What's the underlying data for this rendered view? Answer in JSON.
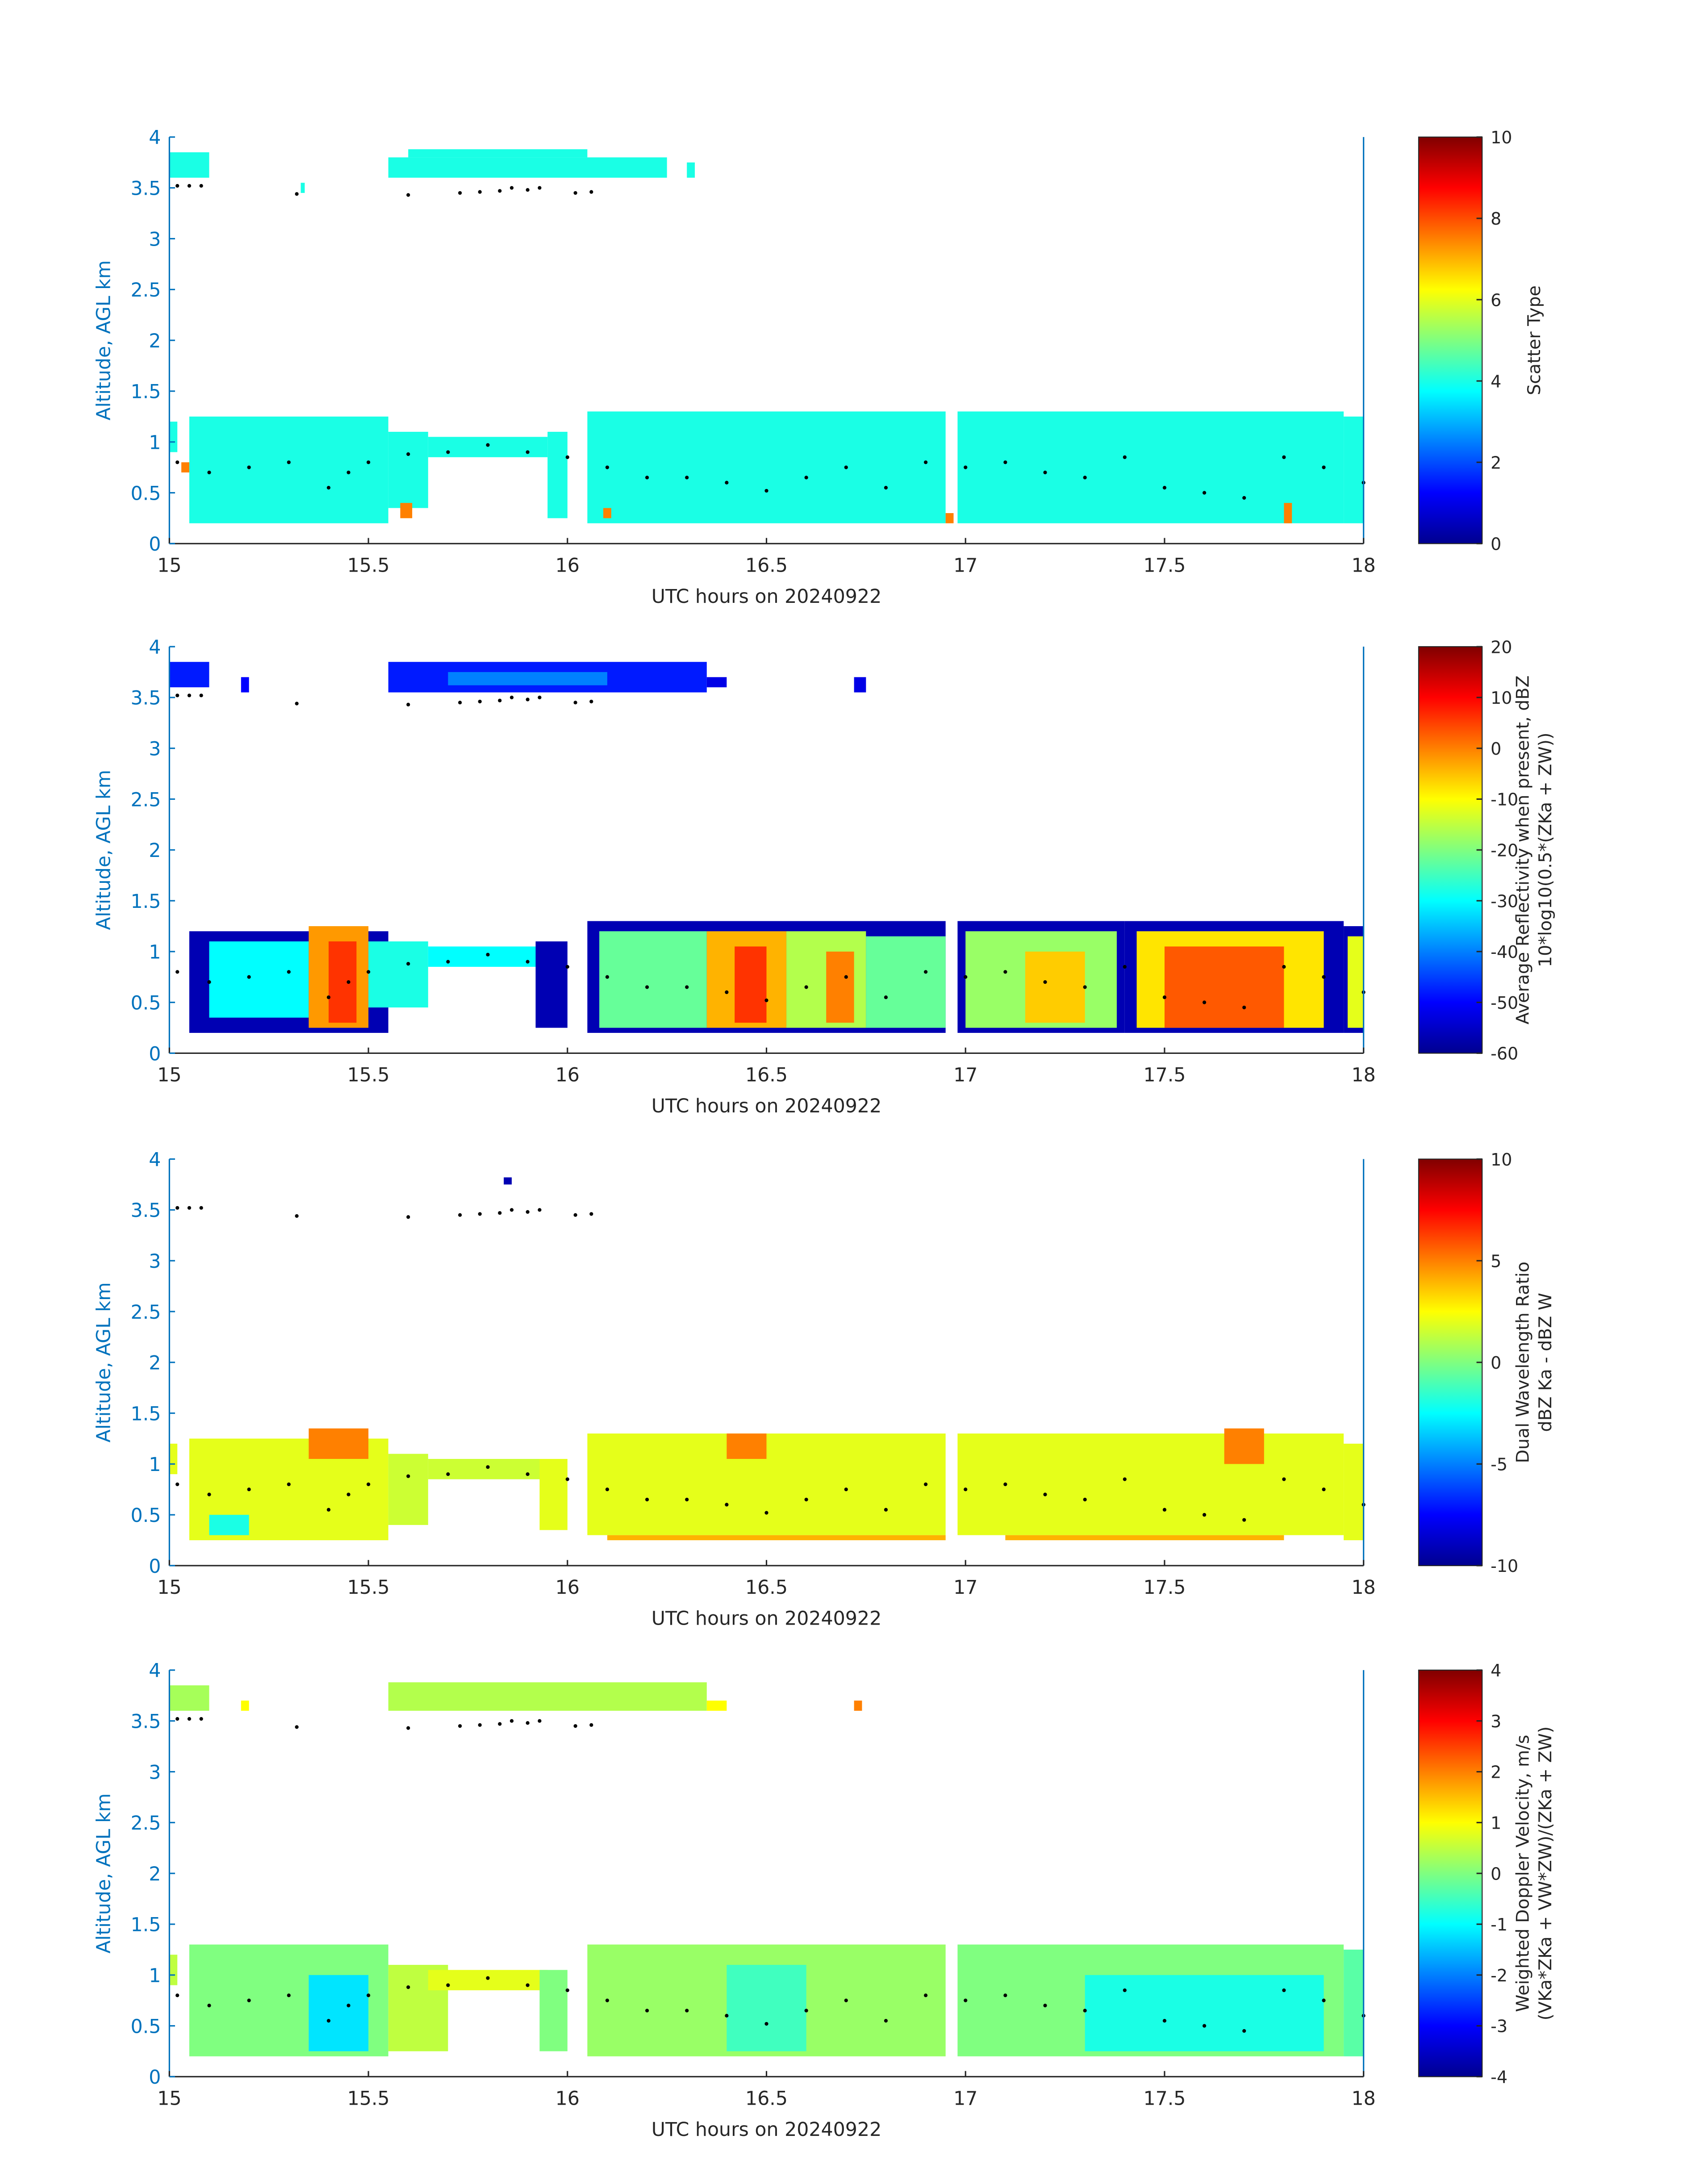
{
  "chart_data": [
    {
      "type": "heatmap",
      "xlabel": "UTC hours on 20240922",
      "ylabel": "Altitude, AGL km",
      "xlim": [
        15,
        18
      ],
      "xticks": [
        15,
        15.5,
        16,
        16.5,
        17,
        17.5,
        18
      ],
      "ylim": [
        0,
        4
      ],
      "yticks": [
        0,
        0.5,
        1,
        1.5,
        2,
        2.5,
        3,
        3.5,
        4
      ],
      "clabel": [
        "Scatter Type"
      ],
      "clim": [
        0,
        10
      ],
      "cticks": [
        0,
        2,
        4,
        6,
        8,
        10
      ],
      "cells": [
        [
          15.0,
          15.1,
          3.6,
          3.85,
          4
        ],
        [
          15.33,
          15.34,
          3.45,
          3.55,
          4
        ],
        [
          15.55,
          16.25,
          3.6,
          3.8,
          4
        ],
        [
          15.6,
          16.05,
          3.8,
          3.88,
          4
        ],
        [
          16.3,
          16.32,
          3.6,
          3.75,
          4
        ],
        [
          15.0,
          15.02,
          0.9,
          1.2,
          4
        ],
        [
          15.05,
          15.55,
          0.2,
          1.25,
          4
        ],
        [
          15.55,
          15.65,
          0.35,
          1.1,
          4
        ],
        [
          15.65,
          15.95,
          0.85,
          1.05,
          4
        ],
        [
          15.95,
          16.0,
          0.25,
          1.1,
          4
        ],
        [
          16.05,
          16.95,
          0.2,
          1.3,
          4
        ],
        [
          16.98,
          17.95,
          0.2,
          1.3,
          4
        ],
        [
          17.95,
          18.0,
          0.2,
          1.25,
          4
        ],
        [
          15.03,
          15.05,
          0.7,
          0.8,
          7.5
        ],
        [
          15.58,
          15.61,
          0.25,
          0.4,
          7.5
        ],
        [
          16.09,
          16.11,
          0.25,
          0.35,
          7.5
        ],
        [
          16.95,
          16.97,
          0.2,
          0.3,
          7.5
        ],
        [
          17.8,
          17.82,
          0.2,
          0.4,
          7.5
        ]
      ],
      "points": {
        "x": [
          15.02,
          15.05,
          15.08,
          15.32,
          15.6,
          15.73,
          15.78,
          15.83,
          15.86,
          15.9,
          15.93,
          16.02,
          16.06,
          15.02,
          15.1,
          15.2,
          15.3,
          15.4,
          15.45,
          15.5,
          15.6,
          15.7,
          15.8,
          15.9,
          16.0,
          16.1,
          16.2,
          16.3,
          16.4,
          16.5,
          16.6,
          16.7,
          16.8,
          16.9,
          17.0,
          17.1,
          17.2,
          17.3,
          17.4,
          17.5,
          17.6,
          17.7,
          17.8,
          17.9,
          18.0
        ],
        "y": [
          3.52,
          3.52,
          3.52,
          3.44,
          3.43,
          3.45,
          3.46,
          3.47,
          3.5,
          3.48,
          3.5,
          3.45,
          3.46,
          0.8,
          0.7,
          0.75,
          0.8,
          0.55,
          0.7,
          0.8,
          0.88,
          0.9,
          0.97,
          0.9,
          0.85,
          0.75,
          0.65,
          0.65,
          0.6,
          0.52,
          0.65,
          0.75,
          0.55,
          0.8,
          0.75,
          0.8,
          0.7,
          0.65,
          0.85,
          0.55,
          0.5,
          0.45,
          0.85,
          0.75,
          0.6
        ]
      }
    },
    {
      "type": "heatmap",
      "xlabel": "UTC hours on 20240922",
      "ylabel": "Altitude, AGL km",
      "xlim": [
        15,
        18
      ],
      "xticks": [
        15,
        15.5,
        16,
        16.5,
        17,
        17.5,
        18
      ],
      "ylim": [
        0,
        4
      ],
      "yticks": [
        0,
        0.5,
        1,
        1.5,
        2,
        2.5,
        3,
        3.5,
        4
      ],
      "clabel": [
        "Average Reflectivity when present, dBZ",
        "10*log10(0.5*(ZKa + ZW))"
      ],
      "clim": [
        -60,
        20
      ],
      "cticks": [
        -60,
        -50,
        -40,
        -30,
        -20,
        -10,
        0,
        10,
        20
      ],
      "cells": [
        [
          15.0,
          15.1,
          3.6,
          3.85,
          -48
        ],
        [
          15.18,
          15.2,
          3.55,
          3.7,
          -50
        ],
        [
          15.55,
          16.35,
          3.55,
          3.85,
          -48
        ],
        [
          15.7,
          16.1,
          3.62,
          3.75,
          -40
        ],
        [
          16.35,
          16.4,
          3.6,
          3.7,
          -52
        ],
        [
          16.72,
          16.75,
          3.55,
          3.7,
          -52
        ],
        [
          15.05,
          15.55,
          0.2,
          1.2,
          -56
        ],
        [
          15.1,
          15.35,
          0.35,
          1.1,
          -30
        ],
        [
          15.35,
          15.5,
          0.25,
          1.25,
          -2
        ],
        [
          15.4,
          15.47,
          0.3,
          1.1,
          6
        ],
        [
          15.5,
          15.65,
          0.45,
          1.1,
          -28
        ],
        [
          15.65,
          15.95,
          0.85,
          1.05,
          -30
        ],
        [
          15.92,
          16.0,
          0.25,
          1.1,
          -56
        ],
        [
          16.05,
          16.95,
          0.2,
          1.3,
          -56
        ],
        [
          16.08,
          16.35,
          0.25,
          1.2,
          -22
        ],
        [
          16.35,
          16.55,
          0.25,
          1.2,
          -4
        ],
        [
          16.42,
          16.5,
          0.3,
          1.05,
          6
        ],
        [
          16.55,
          16.75,
          0.25,
          1.2,
          -16
        ],
        [
          16.65,
          16.72,
          0.3,
          1.0,
          0
        ],
        [
          16.75,
          16.95,
          0.25,
          1.15,
          -22
        ],
        [
          16.98,
          17.4,
          0.2,
          1.3,
          -56
        ],
        [
          17.0,
          17.38,
          0.25,
          1.2,
          -18
        ],
        [
          17.15,
          17.3,
          0.3,
          1.0,
          -6
        ],
        [
          17.4,
          17.95,
          0.2,
          1.3,
          -56
        ],
        [
          17.43,
          17.9,
          0.25,
          1.2,
          -8
        ],
        [
          17.5,
          17.8,
          0.25,
          1.05,
          3
        ],
        [
          17.95,
          18.0,
          0.2,
          1.25,
          -56
        ],
        [
          17.96,
          18.0,
          0.25,
          1.15,
          -12
        ]
      ],
      "points": {
        "x": [
          15.02,
          15.05,
          15.08,
          15.32,
          15.6,
          15.73,
          15.78,
          15.83,
          15.86,
          15.9,
          15.93,
          16.02,
          16.06,
          15.02,
          15.1,
          15.2,
          15.3,
          15.4,
          15.45,
          15.5,
          15.6,
          15.7,
          15.8,
          15.9,
          16.0,
          16.1,
          16.2,
          16.3,
          16.4,
          16.5,
          16.6,
          16.7,
          16.8,
          16.9,
          17.0,
          17.1,
          17.2,
          17.3,
          17.4,
          17.5,
          17.6,
          17.7,
          17.8,
          17.9,
          18.0
        ],
        "y": [
          3.52,
          3.52,
          3.52,
          3.44,
          3.43,
          3.45,
          3.46,
          3.47,
          3.5,
          3.48,
          3.5,
          3.45,
          3.46,
          0.8,
          0.7,
          0.75,
          0.8,
          0.55,
          0.7,
          0.8,
          0.88,
          0.9,
          0.97,
          0.9,
          0.85,
          0.75,
          0.65,
          0.65,
          0.6,
          0.52,
          0.65,
          0.75,
          0.55,
          0.8,
          0.75,
          0.8,
          0.7,
          0.65,
          0.85,
          0.55,
          0.5,
          0.45,
          0.85,
          0.75,
          0.6
        ]
      }
    },
    {
      "type": "heatmap",
      "xlabel": "UTC hours on 20240922",
      "ylabel": "Altitude, AGL km",
      "xlim": [
        15,
        18
      ],
      "xticks": [
        15,
        15.5,
        16,
        16.5,
        17,
        17.5,
        18
      ],
      "ylim": [
        0,
        4
      ],
      "yticks": [
        0,
        0.5,
        1,
        1.5,
        2,
        2.5,
        3,
        3.5,
        4
      ],
      "clabel": [
        "Dual Wavelength Ratio",
        "dBZ Ka - dBZ W"
      ],
      "clim": [
        -10,
        10
      ],
      "cticks": [
        -10,
        -5,
        0,
        5,
        10
      ],
      "cells": [
        [
          15.84,
          15.86,
          3.75,
          3.82,
          -9
        ],
        [
          15.0,
          15.02,
          0.9,
          1.2,
          2
        ],
        [
          15.05,
          15.55,
          0.25,
          1.25,
          2
        ],
        [
          15.35,
          15.5,
          1.05,
          1.35,
          5
        ],
        [
          15.1,
          15.2,
          0.3,
          0.5,
          -2
        ],
        [
          15.55,
          15.65,
          0.4,
          1.1,
          1.5
        ],
        [
          15.65,
          15.95,
          0.85,
          1.05,
          1.5
        ],
        [
          15.93,
          16.0,
          0.35,
          1.05,
          2
        ],
        [
          16.05,
          16.95,
          0.3,
          1.3,
          2
        ],
        [
          16.4,
          16.5,
          1.05,
          1.3,
          5
        ],
        [
          16.1,
          16.95,
          0.25,
          0.3,
          4
        ],
        [
          16.98,
          17.95,
          0.3,
          1.3,
          2
        ],
        [
          17.65,
          17.75,
          1.0,
          1.35,
          5
        ],
        [
          17.1,
          17.8,
          0.25,
          0.3,
          4
        ],
        [
          17.95,
          18.0,
          0.25,
          1.2,
          2
        ]
      ],
      "points": {
        "x": [
          15.02,
          15.05,
          15.08,
          15.32,
          15.6,
          15.73,
          15.78,
          15.83,
          15.86,
          15.9,
          15.93,
          16.02,
          16.06,
          15.02,
          15.1,
          15.2,
          15.3,
          15.4,
          15.45,
          15.5,
          15.6,
          15.7,
          15.8,
          15.9,
          16.0,
          16.1,
          16.2,
          16.3,
          16.4,
          16.5,
          16.6,
          16.7,
          16.8,
          16.9,
          17.0,
          17.1,
          17.2,
          17.3,
          17.4,
          17.5,
          17.6,
          17.7,
          17.8,
          17.9,
          18.0
        ],
        "y": [
          3.52,
          3.52,
          3.52,
          3.44,
          3.43,
          3.45,
          3.46,
          3.47,
          3.5,
          3.48,
          3.5,
          3.45,
          3.46,
          0.8,
          0.7,
          0.75,
          0.8,
          0.55,
          0.7,
          0.8,
          0.88,
          0.9,
          0.97,
          0.9,
          0.85,
          0.75,
          0.65,
          0.65,
          0.6,
          0.52,
          0.65,
          0.75,
          0.55,
          0.8,
          0.75,
          0.8,
          0.7,
          0.65,
          0.85,
          0.55,
          0.5,
          0.45,
          0.85,
          0.75,
          0.6
        ]
      }
    },
    {
      "type": "heatmap",
      "xlabel": "UTC hours on 20240922",
      "ylabel": "Altitude, AGL km",
      "xlim": [
        15,
        18
      ],
      "xticks": [
        15,
        15.5,
        16,
        16.5,
        17,
        17.5,
        18
      ],
      "ylim": [
        0,
        4
      ],
      "yticks": [
        0,
        0.5,
        1,
        1.5,
        2,
        2.5,
        3,
        3.5,
        4
      ],
      "clabel": [
        "Weighted Doppler Velocity, m/s",
        "(VKa*ZKa + VW*ZW)/(ZKa + ZW)"
      ],
      "clim": [
        -4,
        4
      ],
      "cticks": [
        -4,
        -3,
        -2,
        -1,
        0,
        1,
        2,
        3,
        4
      ],
      "cells": [
        [
          15.0,
          15.1,
          3.6,
          3.85,
          0.3
        ],
        [
          15.18,
          15.2,
          3.6,
          3.7,
          1
        ],
        [
          15.55,
          16.35,
          3.6,
          3.88,
          0.4
        ],
        [
          16.35,
          16.4,
          3.6,
          3.7,
          1
        ],
        [
          16.72,
          16.74,
          3.6,
          3.7,
          2
        ],
        [
          15.0,
          15.02,
          0.9,
          1.2,
          0.5
        ],
        [
          15.05,
          15.55,
          0.2,
          1.3,
          0
        ],
        [
          15.35,
          15.5,
          0.25,
          1.0,
          -1.2
        ],
        [
          15.55,
          15.7,
          0.25,
          1.1,
          0.5
        ],
        [
          15.65,
          15.95,
          0.85,
          1.05,
          0.8
        ],
        [
          15.93,
          16.0,
          0.25,
          1.05,
          0
        ],
        [
          16.05,
          16.95,
          0.2,
          1.3,
          0.2
        ],
        [
          16.4,
          16.6,
          0.25,
          1.1,
          -0.5
        ],
        [
          16.98,
          17.95,
          0.2,
          1.3,
          0
        ],
        [
          17.3,
          17.9,
          0.25,
          1.0,
          -0.8
        ],
        [
          17.95,
          18.0,
          0.2,
          1.25,
          -0.3
        ]
      ],
      "points": {
        "x": [
          15.02,
          15.05,
          15.08,
          15.32,
          15.6,
          15.73,
          15.78,
          15.83,
          15.86,
          15.9,
          15.93,
          16.02,
          16.06,
          15.02,
          15.1,
          15.2,
          15.3,
          15.4,
          15.45,
          15.5,
          15.6,
          15.7,
          15.8,
          15.9,
          16.0,
          16.1,
          16.2,
          16.3,
          16.4,
          16.5,
          16.6,
          16.7,
          16.8,
          16.9,
          17.0,
          17.1,
          17.2,
          17.3,
          17.4,
          17.5,
          17.6,
          17.7,
          17.8,
          17.9,
          18.0
        ],
        "y": [
          3.52,
          3.52,
          3.52,
          3.44,
          3.43,
          3.45,
          3.46,
          3.47,
          3.5,
          3.48,
          3.5,
          3.45,
          3.46,
          0.8,
          0.7,
          0.75,
          0.8,
          0.55,
          0.7,
          0.8,
          0.88,
          0.9,
          0.97,
          0.9,
          0.85,
          0.75,
          0.65,
          0.65,
          0.6,
          0.52,
          0.65,
          0.75,
          0.55,
          0.8,
          0.75,
          0.8,
          0.7,
          0.65,
          0.85,
          0.55,
          0.5,
          0.45,
          0.85,
          0.75,
          0.6
        ]
      }
    }
  ]
}
